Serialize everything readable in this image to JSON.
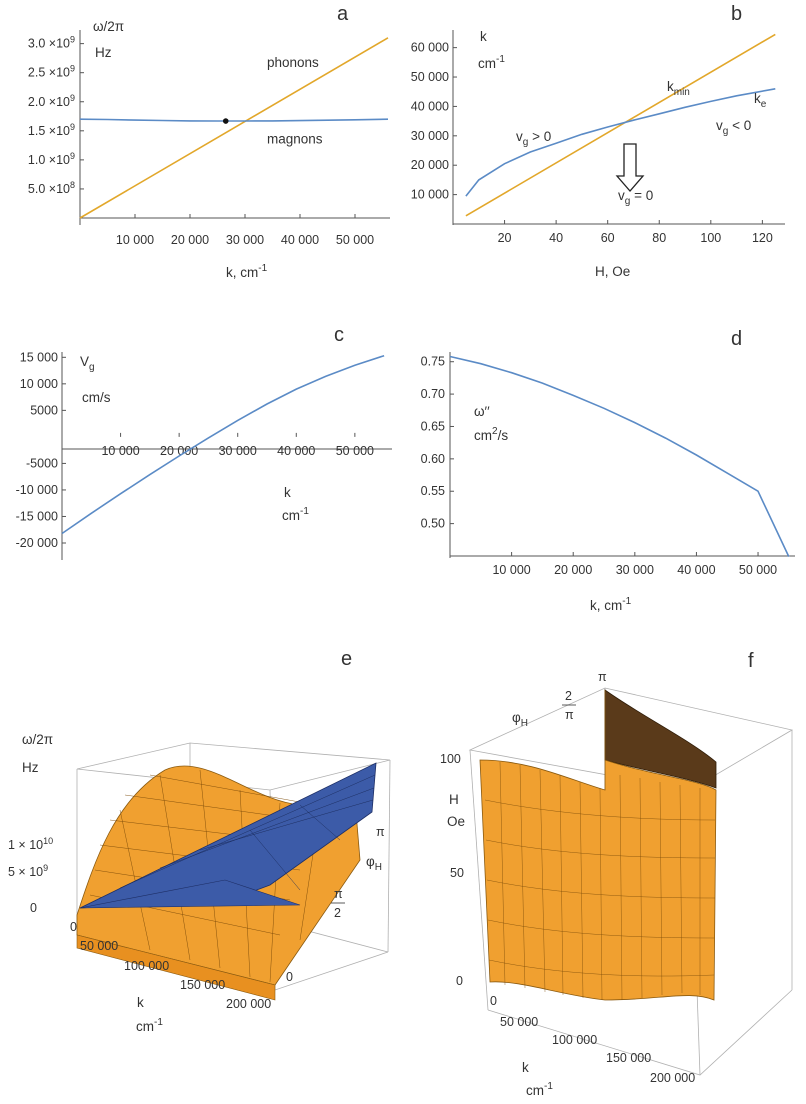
{
  "colors": {
    "magnon": "#5b8bc6",
    "phonon": "#e2a72a",
    "surface_orange": "#f0a030",
    "surface_blue": "#3c5ba8",
    "axis": "#555555"
  },
  "chart_data": [
    {
      "id": "a",
      "type": "line",
      "panel_label": "a",
      "ylabel_main": "ω/2π",
      "ylabel_unit": "Hz",
      "xlabel": "k, cm",
      "xlabel_exp": "-1",
      "xlim": [
        0,
        56000
      ],
      "ylim": [
        0,
        3200000000.0
      ],
      "xticks": [
        10000,
        20000,
        30000,
        40000,
        50000
      ],
      "xtick_labels": [
        "10 000",
        "20 000",
        "30 000",
        "40 000",
        "50 000"
      ],
      "yticks": [
        500000000.0,
        1000000000.0,
        1500000000.0,
        2000000000.0,
        2500000000.0,
        3000000000.0
      ],
      "ytick_mant": [
        "5.0",
        "1.0",
        "1.5",
        "2.0",
        "2.5",
        "3.0"
      ],
      "ytick_exp": [
        "8",
        "9",
        "9",
        "9",
        "9",
        "9"
      ],
      "ytick_times": "×10",
      "series": [
        {
          "name": "phonons",
          "color": "phonon",
          "x": [
            0,
            56000
          ],
          "y": [
            0,
            3100000000.0
          ]
        },
        {
          "name": "magnons",
          "color": "magnon",
          "x": [
            0,
            5000,
            10000,
            15000,
            20000,
            25000,
            30000,
            35000,
            40000,
            45000,
            50000,
            56000
          ],
          "y": [
            1700000000.0,
            1695000000.0,
            1685000000.0,
            1677000000.0,
            1671000000.0,
            1668000000.0,
            1668000000.0,
            1671000000.0,
            1676000000.0,
            1683000000.0,
            1690000000.0,
            1700000000.0
          ]
        }
      ],
      "marker": {
        "x": 26500,
        "y": 1668000000.0
      },
      "annotations": [
        {
          "text": "phonons",
          "x": 34000,
          "y": 2600000000.0
        },
        {
          "text": "magnons",
          "x": 34000,
          "y": 1280000000.0
        }
      ]
    },
    {
      "id": "b",
      "type": "line",
      "panel_label": "b",
      "ylabel_main": "k",
      "ylabel_unit": "cm",
      "ylabel_unit_exp": "-1",
      "xlabel": "H, Oe",
      "xlim": [
        0,
        128
      ],
      "ylim": [
        0,
        66000
      ],
      "xticks": [
        20,
        40,
        60,
        80,
        100,
        120
      ],
      "xtick_labels": [
        "20",
        "40",
        "60",
        "80",
        "100",
        "120"
      ],
      "yticks": [
        10000,
        20000,
        30000,
        40000,
        50000,
        60000
      ],
      "ytick_labels": [
        "10 000",
        "20 000",
        "30 000",
        "40 000",
        "50 000",
        "60 000"
      ],
      "series": [
        {
          "name": "k_min",
          "color": "phonon",
          "x": [
            5,
            125
          ],
          "y": [
            2800,
            64500
          ]
        },
        {
          "name": "k_e",
          "color": "magnon",
          "x": [
            5,
            10,
            20,
            30,
            40,
            50,
            60,
            70,
            80,
            90,
            100,
            110,
            125
          ],
          "y": [
            9500,
            15000,
            20500,
            24500,
            27500,
            30500,
            33000,
            35300,
            37500,
            39700,
            41700,
            43600,
            46000
          ]
        }
      ],
      "annotations": {
        "kmin_main": "k",
        "kmin_sub": "min",
        "ke_main": "k",
        "ke_sub": "e",
        "vg_pos_main": "v",
        "vg_pos_sub": "g",
        "vg_pos_rest": " > 0",
        "vg_neg_main": "v",
        "vg_neg_sub": "g",
        "vg_neg_rest": " < 0",
        "vg_zero_main": "v",
        "vg_zero_sub": "g",
        "vg_zero_rest": " = 0"
      }
    },
    {
      "id": "c",
      "type": "line",
      "panel_label": "c",
      "ylabel_main": "V",
      "ylabel_sub": "g",
      "ylabel_unit": "cm/s",
      "xlabel": "k",
      "xlabel_unit": "cm",
      "xlabel_exp": "-1",
      "xlim": [
        0,
        56000
      ],
      "ylim": [
        -20000,
        16000
      ],
      "xticks": [
        10000,
        20000,
        30000,
        40000,
        50000
      ],
      "xtick_labels": [
        "10 000",
        "20 000",
        "30 000",
        "40 000",
        "50 000"
      ],
      "yticks": [
        -20000,
        -15000,
        -10000,
        -5000,
        5000,
        10000,
        15000
      ],
      "ytick_labels": [
        "-20 000",
        "-15 000",
        "-10 000",
        "-5000",
        "5000",
        "10 000",
        "15 000"
      ],
      "series": [
        {
          "name": "",
          "color": "magnon",
          "x": [
            0,
            5000,
            10000,
            15000,
            20000,
            25000,
            30000,
            35000,
            40000,
            45000,
            50000,
            55000
          ],
          "y": [
            -18200,
            -14400,
            -10700,
            -7100,
            -3600,
            -200,
            3100,
            6200,
            9000,
            11400,
            13500,
            15300
          ]
        }
      ]
    },
    {
      "id": "d",
      "type": "line",
      "panel_label": "d",
      "ylabel_main": "ω′′",
      "ylabel_unit": "cm",
      "ylabel_unit_exp": "2",
      "ylabel_unit_rest": "/s",
      "xlabel": "k, cm",
      "xlabel_exp": "-1",
      "xlim": [
        0,
        56000
      ],
      "ylim": [
        0.45,
        0.765
      ],
      "xticks": [
        10000,
        20000,
        30000,
        40000,
        50000
      ],
      "xtick_labels": [
        "10 000",
        "20 000",
        "30 000",
        "40 000",
        "50 000"
      ],
      "yticks": [
        0.5,
        0.55,
        0.6,
        0.65,
        0.7,
        0.75
      ],
      "ytick_labels": [
        "0.50",
        "0.55",
        "0.60",
        "0.65",
        "0.70",
        "0.75"
      ],
      "series": [
        {
          "name": "",
          "color": "magnon",
          "x": [
            0,
            5000,
            10000,
            15000,
            20000,
            25000,
            30000,
            35000,
            40000,
            45000,
            50000,
            55000
          ],
          "y": [
            0.758,
            0.747,
            0.733,
            0.717,
            0.698,
            0.678,
            0.656,
            0.632,
            0.606,
            0.578,
            0.55,
            0.449
          ]
        }
      ]
    },
    {
      "id": "e",
      "type": "surface3d",
      "panel_label": "e",
      "zlabel_main": "ω/2π",
      "zlabel_unit": "Hz",
      "ztick_labels": [
        "0",
        "5 × 10",
        "1 × 10"
      ],
      "ztick_exps": [
        "",
        "9",
        "10"
      ],
      "xlabel": "k",
      "xlabel_unit": "cm",
      "xlabel_exp": "-1",
      "xtick_labels": [
        "0",
        "50 000",
        "100 000",
        "150 000",
        "200 000"
      ],
      "ylabel": "φ",
      "ylabel_sub": "H",
      "ytick_labels": [
        "0",
        "π",
        "2",
        "π"
      ],
      "surfaces": [
        "magnon surface (orange)",
        "phonon plane (blue)"
      ]
    },
    {
      "id": "f",
      "type": "surface3d",
      "panel_label": "f",
      "zlabel_main": "H",
      "zlabel_unit": "Oe",
      "ztick_labels": [
        "0",
        "50",
        "100"
      ],
      "ylabel": "φ",
      "ylabel_sub": "H",
      "ytick_labels": [
        "π",
        "2",
        "π"
      ],
      "xlabel": "k",
      "xlabel_unit": "cm",
      "xlabel_exp": "-1",
      "xtick_labels": [
        "0",
        "50 000",
        "100 000",
        "150 000",
        "200 000"
      ]
    }
  ]
}
